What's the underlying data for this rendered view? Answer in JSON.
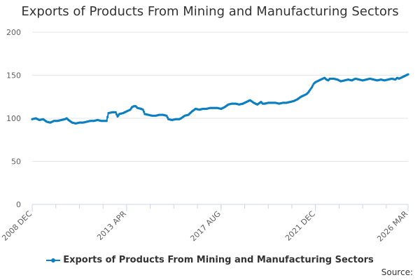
{
  "chart_data": {
    "type": "line",
    "title": "Exports of Products From Mining and Manufacturing Sectors",
    "xlabel": "",
    "ylabel": "",
    "ylim": [
      0,
      200
    ],
    "yticks": [
      0,
      50,
      100,
      150,
      200
    ],
    "x_range": [
      0,
      207
    ],
    "x_tick_labels": [
      {
        "index": 0,
        "label": "2008 DEC"
      },
      {
        "index": 52,
        "label": "2013 APR"
      },
      {
        "index": 104,
        "label": "2017 AUG"
      },
      {
        "index": 156,
        "label": "2021 DEC"
      },
      {
        "index": 207,
        "label": "2026 MAR"
      }
    ],
    "x_minor_ticks": [
      0,
      13,
      26,
      39,
      52,
      65,
      78,
      91,
      104,
      117,
      130,
      143,
      156,
      169,
      182,
      195,
      207
    ],
    "series": [
      {
        "name": "Exports of Products From Mining and Manufacturing Sectors",
        "color": "#0c7fc1",
        "anchors": [
          [
            0,
            99
          ],
          [
            2,
            100
          ],
          [
            4,
            98
          ],
          [
            6,
            99
          ],
          [
            8,
            96
          ],
          [
            10,
            95
          ],
          [
            12,
            97
          ],
          [
            14,
            97
          ],
          [
            16,
            98
          ],
          [
            18,
            99
          ],
          [
            19,
            100
          ],
          [
            20,
            98
          ],
          [
            22,
            95
          ],
          [
            24,
            94
          ],
          [
            26,
            95
          ],
          [
            28,
            95
          ],
          [
            30,
            96
          ],
          [
            32,
            97
          ],
          [
            34,
            97
          ],
          [
            36,
            98
          ],
          [
            38,
            97
          ],
          [
            40,
            97
          ],
          [
            41,
            97
          ],
          [
            42,
            106
          ],
          [
            44,
            107
          ],
          [
            46,
            107
          ],
          [
            47,
            102
          ],
          [
            48,
            105
          ],
          [
            50,
            106
          ],
          [
            52,
            108
          ],
          [
            54,
            110
          ],
          [
            55,
            113
          ],
          [
            56,
            114
          ],
          [
            57,
            114
          ],
          [
            58,
            112
          ],
          [
            60,
            111
          ],
          [
            61,
            110
          ],
          [
            62,
            105
          ],
          [
            64,
            104
          ],
          [
            66,
            103
          ],
          [
            68,
            103
          ],
          [
            70,
            104
          ],
          [
            72,
            104
          ],
          [
            74,
            103
          ],
          [
            75,
            99
          ],
          [
            77,
            98
          ],
          [
            79,
            99
          ],
          [
            81,
            99
          ],
          [
            82,
            100
          ],
          [
            84,
            103
          ],
          [
            86,
            104
          ],
          [
            88,
            108
          ],
          [
            90,
            111
          ],
          [
            92,
            110
          ],
          [
            94,
            111
          ],
          [
            96,
            111
          ],
          [
            98,
            112
          ],
          [
            100,
            112
          ],
          [
            102,
            112
          ],
          [
            104,
            111
          ],
          [
            106,
            113
          ],
          [
            108,
            116
          ],
          [
            110,
            117
          ],
          [
            112,
            117
          ],
          [
            114,
            116
          ],
          [
            116,
            117
          ],
          [
            118,
            119
          ],
          [
            120,
            121
          ],
          [
            122,
            118
          ],
          [
            124,
            116
          ],
          [
            126,
            119
          ],
          [
            127,
            117
          ],
          [
            128,
            117
          ],
          [
            130,
            118
          ],
          [
            132,
            118
          ],
          [
            134,
            118
          ],
          [
            136,
            117
          ],
          [
            138,
            118
          ],
          [
            140,
            118
          ],
          [
            142,
            119
          ],
          [
            144,
            120
          ],
          [
            146,
            122
          ],
          [
            148,
            125
          ],
          [
            150,
            127
          ],
          [
            151,
            128
          ],
          [
            152,
            130
          ],
          [
            153,
            133
          ],
          [
            154,
            136
          ],
          [
            155,
            140
          ],
          [
            156,
            142
          ],
          [
            158,
            144
          ],
          [
            160,
            146
          ],
          [
            161,
            147
          ],
          [
            162,
            145
          ],
          [
            163,
            144
          ],
          [
            164,
            146
          ],
          [
            166,
            146
          ],
          [
            168,
            145
          ],
          [
            170,
            143
          ],
          [
            172,
            144
          ],
          [
            174,
            145
          ],
          [
            176,
            144
          ],
          [
            178,
            146
          ],
          [
            180,
            145
          ],
          [
            182,
            144
          ],
          [
            184,
            145
          ],
          [
            186,
            146
          ],
          [
            188,
            145
          ],
          [
            190,
            144
          ],
          [
            192,
            145
          ],
          [
            194,
            144
          ],
          [
            196,
            145
          ],
          [
            198,
            146
          ],
          [
            200,
            145
          ],
          [
            201,
            147
          ],
          [
            202,
            146
          ],
          [
            204,
            148
          ],
          [
            206,
            150
          ],
          [
            207,
            151
          ]
        ]
      }
    ]
  },
  "legend": {
    "label": "Exports of Products From Mining and Manufacturing Sectors"
  },
  "source_label": "Source:",
  "colors": {
    "series": "#0c7fc1",
    "grid": "#e6e6e6",
    "axis": "#ccd6eb"
  }
}
